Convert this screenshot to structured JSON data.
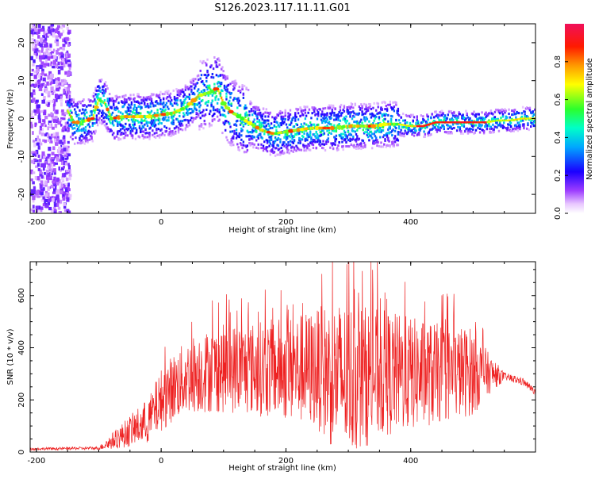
{
  "figure_title": "S126.2023.117.11.11.G01",
  "colors": {
    "axis": "#000000",
    "snr_line": "#ee2222",
    "trace_core": "#ff2a2a"
  },
  "chart_data": [
    {
      "type": "heatmap",
      "title": "",
      "xlabel": "Height of straight line (km)",
      "ylabel": "Frequency (Hz)",
      "xlim": [
        -210,
        600
      ],
      "ylim": [
        -25,
        25
      ],
      "xticks": [
        "-200",
        "0",
        "200",
        "400"
      ],
      "xtick_values": [
        -200,
        0,
        200,
        400
      ],
      "yticks": [
        "-20",
        "-10",
        "0",
        "10",
        "20"
      ],
      "ytick_values": [
        -20,
        -10,
        0,
        10,
        20
      ],
      "colorbar": {
        "label": "Normalized spectral amplitude",
        "range": [
          0,
          1
        ],
        "ticks": [
          "0.0",
          "0.2",
          "0.4",
          "0.6",
          "0.8"
        ],
        "tick_values": [
          0.0,
          0.2,
          0.4,
          0.6,
          0.8
        ],
        "colormap": "rainbow (white-violet-blue-cyan-green-yellow-red-magenta)"
      },
      "trace": {
        "x": [
          -150,
          -140,
          -130,
          -110,
          -100,
          -90,
          -80,
          -60,
          -40,
          -20,
          0,
          20,
          40,
          60,
          80,
          90,
          100,
          110,
          120,
          140,
          160,
          180,
          200,
          220,
          240,
          260,
          280,
          300,
          320,
          340,
          360,
          380,
          400,
          420,
          440,
          460,
          480,
          500,
          520,
          540,
          560,
          580,
          600
        ],
        "y": [
          2,
          -1,
          -1,
          0,
          5,
          4,
          0,
          0.5,
          0.5,
          0.5,
          1,
          1.5,
          3,
          6,
          7,
          8,
          4,
          2,
          1,
          -1,
          -3,
          -4,
          -3.5,
          -3,
          -2.5,
          -2.5,
          -2.5,
          -2,
          -2,
          -2,
          -1.5,
          -1.5,
          -2,
          -2,
          -1,
          -1,
          -1,
          -1,
          -1,
          -0.5,
          -0.5,
          0,
          0
        ]
      }
    },
    {
      "type": "line",
      "title": "",
      "xlabel": "Height of straight line (km)",
      "ylabel": "SNR (10 * v/v)",
      "xlim": [
        -210,
        600
      ],
      "ylim": [
        0,
        730
      ],
      "xticks": [
        "-200",
        "0",
        "200",
        "400"
      ],
      "xtick_values": [
        -200,
        0,
        200,
        400
      ],
      "yticks": [
        "0",
        "200",
        "400",
        "600"
      ],
      "ytick_values": [
        0,
        200,
        400,
        600
      ],
      "envelope": {
        "x": [
          -210,
          -100,
          -80,
          -50,
          -20,
          0,
          20,
          50,
          100,
          150,
          200,
          250,
          270,
          300,
          350,
          400,
          450,
          500,
          525,
          550,
          580,
          600
        ],
        "center": [
          12,
          15,
          40,
          80,
          120,
          200,
          250,
          300,
          320,
          320,
          320,
          320,
          300,
          280,
          300,
          300,
          300,
          310,
          300,
          290,
          270,
          230
        ],
        "spread": [
          5,
          6,
          30,
          60,
          90,
          120,
          130,
          150,
          170,
          180,
          200,
          230,
          280,
          300,
          250,
          220,
          190,
          170,
          80,
          15,
          15,
          12
        ]
      }
    }
  ]
}
